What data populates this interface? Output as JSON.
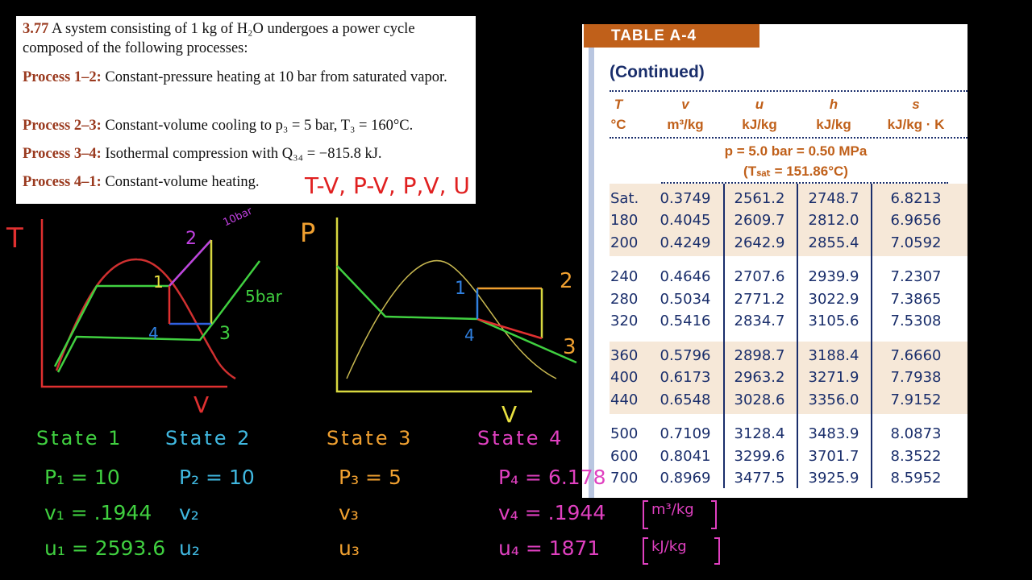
{
  "problem": {
    "number": "3.77",
    "statement": "A system consisting of 1 kg of H₂O undergoes a power cycle composed of the following processes:",
    "processes": [
      {
        "label": "Process 1–2:",
        "text": "Constant-pressure heating at 10 bar from saturated vapor."
      },
      {
        "label": "Process 2–3:",
        "text": "Constant-volume cooling to p₃ = 5 bar, T₃ = 160°C."
      },
      {
        "label": "Process 3–4:",
        "text": "Isothermal compression with Q₃₄ = −815.8 kJ."
      },
      {
        "label": "Process 4–1:",
        "text": "Constant-volume heating."
      }
    ]
  },
  "annotation": "T-V, P-V, P,V, U",
  "table": {
    "tab": "TABLE A-4",
    "continued": "(Continued)",
    "columns": [
      {
        "symbol": "T",
        "unit": "°C"
      },
      {
        "symbol": "v",
        "unit": "m³/kg"
      },
      {
        "symbol": "u",
        "unit": "kJ/kg"
      },
      {
        "symbol": "h",
        "unit": "kJ/kg"
      },
      {
        "symbol": "s",
        "unit": "kJ/kg · K"
      }
    ],
    "section": {
      "line1": "p = 5.0 bar = 0.50 MPa",
      "line2": "(Tₛₐₜ = 151.86°C)"
    },
    "rows": [
      [
        "Sat.",
        "0.3749",
        "2561.2",
        "2748.7",
        "6.8213"
      ],
      [
        "180",
        "0.4045",
        "2609.7",
        "2812.0",
        "6.9656"
      ],
      [
        "200",
        "0.4249",
        "2642.9",
        "2855.4",
        "7.0592"
      ],
      [
        "240",
        "0.4646",
        "2707.6",
        "2939.9",
        "7.2307"
      ],
      [
        "280",
        "0.5034",
        "2771.2",
        "3022.9",
        "7.3865"
      ],
      [
        "320",
        "0.5416",
        "2834.7",
        "3105.6",
        "7.5308"
      ],
      [
        "360",
        "0.5796",
        "2898.7",
        "3188.4",
        "7.6660"
      ],
      [
        "400",
        "0.6173",
        "2963.2",
        "3271.9",
        "7.7938"
      ],
      [
        "440",
        "0.6548",
        "3028.6",
        "3356.0",
        "7.9152"
      ],
      [
        "500",
        "0.7109",
        "3128.4",
        "3483.9",
        "8.0873"
      ],
      [
        "600",
        "0.8041",
        "3299.6",
        "3701.7",
        "8.3522"
      ],
      [
        "700",
        "0.8969",
        "3477.5",
        "3925.9",
        "8.5952"
      ]
    ]
  },
  "diagrams": {
    "tv": {
      "y_label": "T",
      "x_label": "V",
      "points": [
        "1",
        "2",
        "3",
        "4"
      ],
      "isobars": [
        "10bar",
        "5bar"
      ]
    },
    "pv": {
      "y_label": "P",
      "x_label": "V",
      "points": [
        "1",
        "2",
        "3",
        "4"
      ]
    }
  },
  "states": [
    {
      "title": "State 1",
      "lines": [
        "P₁ = 10",
        "v₁ = .1944",
        "u₁ = 2593.6"
      ]
    },
    {
      "title": "State 2",
      "lines": [
        "P₂ = 10",
        "v₂",
        "u₂"
      ]
    },
    {
      "title": "State 3",
      "lines": [
        "P₃ = 5",
        "v₃",
        "u₃"
      ]
    },
    {
      "title": "State 4",
      "lines": [
        "P₄ = 6.178",
        "v₄ = .1944",
        "u₄ = 1871"
      ]
    }
  ],
  "units": [
    "m³/kg",
    "kJ/kg"
  ]
}
